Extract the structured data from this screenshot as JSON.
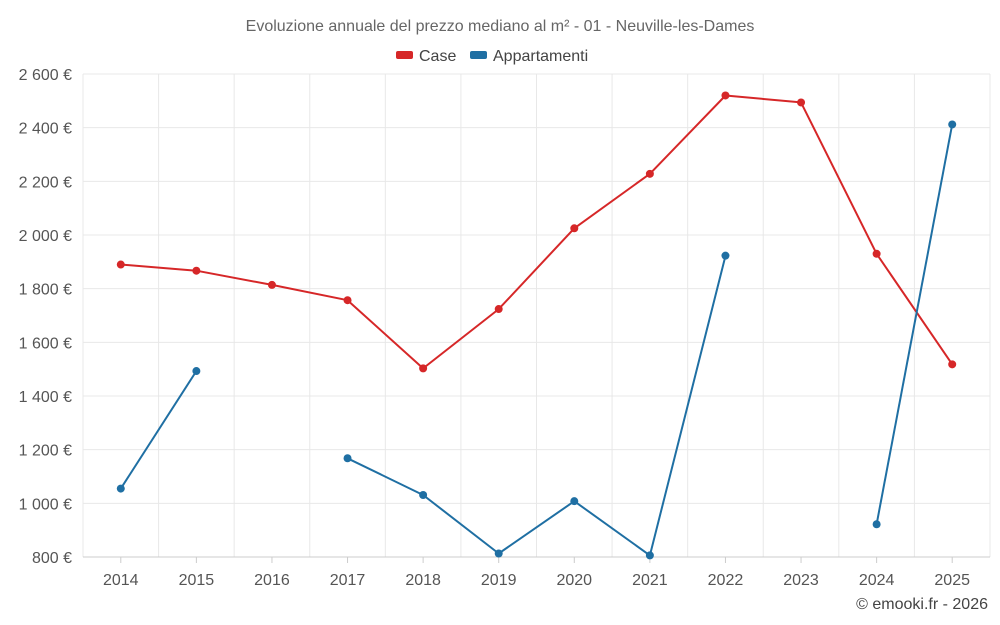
{
  "chart_data": {
    "type": "line",
    "title": "Evoluzione annuale del prezzo mediano al m² - 01 - Neuville-les-Dames",
    "xlabel": "",
    "ylabel": "",
    "categories": [
      "2014",
      "2015",
      "2016",
      "2017",
      "2018",
      "2019",
      "2020",
      "2021",
      "2022",
      "2023",
      "2024",
      "2025"
    ],
    "ylim": [
      800,
      2600
    ],
    "yticks": [
      800,
      1000,
      1200,
      1400,
      1600,
      1800,
      2000,
      2200,
      2400,
      2600
    ],
    "ytick_labels": [
      "800 €",
      "1 000 €",
      "1 200 €",
      "1 400 €",
      "1 600 €",
      "1 800 €",
      "2 000 €",
      "2 200 €",
      "2 400 €",
      "2 600 €"
    ],
    "legend_position": "top-center",
    "grid": true,
    "series": [
      {
        "name": "Case",
        "color": "#d62728",
        "values": [
          1890,
          1867,
          1814,
          1757,
          1503,
          1724,
          2025,
          2228,
          2520,
          2494,
          1930,
          1518
        ]
      },
      {
        "name": "Appartamenti",
        "color": "#1f6fa3",
        "values": [
          1055,
          1493,
          null,
          1168,
          1031,
          813,
          1008,
          806,
          1923,
          null,
          922,
          2412
        ]
      }
    ]
  },
  "credit": "© emooki.fr - 2026"
}
